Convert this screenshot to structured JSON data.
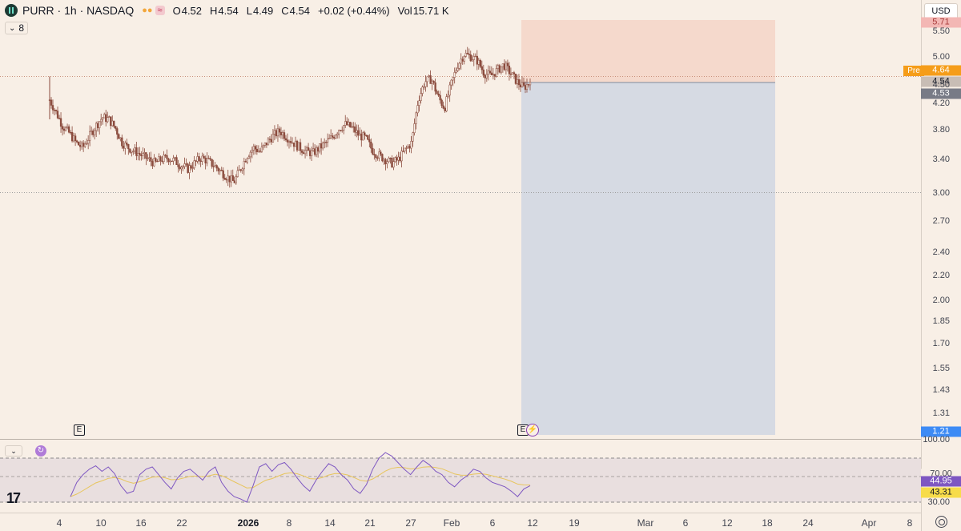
{
  "header": {
    "symbol": "PURR · 1h · NASDAQ",
    "open_label": "O",
    "open": "4.52",
    "high_label": "H",
    "high": "4.54",
    "low_label": "L",
    "low": "4.49",
    "close_label": "C",
    "close": "4.54",
    "change": "+0.02 (+0.44%)",
    "vol_label": "Vol",
    "vol": "15.71 K",
    "indicator_count": "8"
  },
  "currency": "USD",
  "price_axis": [
    "5.50",
    "5.00",
    "4.50",
    "4.20",
    "3.80",
    "3.40",
    "3.00",
    "2.70",
    "2.40",
    "2.20",
    "2.00",
    "1.85",
    "1.70",
    "1.55",
    "1.43",
    "1.31"
  ],
  "price_tags": {
    "top_partial": "5.71",
    "pre_label": "Pre",
    "pre": "4.64",
    "last": "4.54",
    "bid": "4.53",
    "stop": "1.21"
  },
  "rsi_axis": [
    "100.00",
    "30.00"
  ],
  "rsi_tags": {
    "top_partial": "70.00",
    "rsi": "44.95",
    "rsi_ma": "43.31"
  },
  "time_axis": [
    {
      "label": "4"
    },
    {
      "label": "10"
    },
    {
      "label": "16"
    },
    {
      "label": "22"
    },
    {
      "label": "2026",
      "bold": true
    },
    {
      "label": "8"
    },
    {
      "label": "14"
    },
    {
      "label": "21"
    },
    {
      "label": "27"
    },
    {
      "label": "Feb"
    },
    {
      "label": "6"
    },
    {
      "label": "12"
    },
    {
      "label": "19"
    },
    {
      "label": "Mar"
    },
    {
      "label": "6"
    },
    {
      "label": "12"
    },
    {
      "label": "18"
    },
    {
      "label": "24"
    },
    {
      "label": "Apr"
    },
    {
      "label": "8"
    }
  ],
  "events": [
    {
      "label": "E"
    },
    {
      "label": "E"
    }
  ],
  "colors": {
    "background": "#f8efe6",
    "candle": "#8a4a3c",
    "target_zone": "#f5d9cc",
    "stop_zone": "#d6dae3",
    "rsi": "#7e57c2",
    "rsi_ma": "#e8c55c",
    "rsi_band": "#e9dfdf"
  },
  "icons": [
    "chevron-down-icon",
    "refresh-icon",
    "tradingview-logo-icon",
    "bolt-icon",
    "settings-icon"
  ],
  "chart_data": {
    "type": "candlestick",
    "symbol": "PURR",
    "interval": "1h",
    "series_close": [
      4.25,
      4.05,
      3.85,
      3.75,
      3.62,
      3.55,
      3.7,
      3.85,
      3.98,
      3.95,
      3.82,
      3.62,
      3.55,
      3.5,
      3.45,
      3.4,
      3.35,
      3.4,
      3.42,
      3.38,
      3.32,
      3.28,
      3.35,
      3.42,
      3.38,
      3.32,
      3.25,
      3.18,
      3.12,
      3.28,
      3.45,
      3.55,
      3.5,
      3.62,
      3.72,
      3.78,
      3.7,
      3.62,
      3.55,
      3.5,
      3.48,
      3.55,
      3.62,
      3.7,
      3.82,
      3.88,
      3.82,
      3.72,
      3.68,
      3.52,
      3.45,
      3.4,
      3.35,
      3.4,
      3.52,
      3.62,
      4.25,
      4.55,
      4.6,
      4.3,
      4.12,
      4.5,
      4.85,
      5.05,
      5.0,
      4.92,
      4.7,
      4.65,
      4.75,
      4.85,
      4.7,
      4.55,
      4.45,
      4.54
    ],
    "price_range": [
      1.21,
      5.71
    ],
    "scale": "log",
    "reference_lines": [
      4.64,
      3.0
    ],
    "position": {
      "entry": 4.54,
      "target": 5.71,
      "stop": 1.21
    },
    "rsi": {
      "levels": [
        70,
        50,
        30
      ],
      "range": [
        0,
        100
      ],
      "last": 44.95,
      "ma_last": 43.31,
      "series": [
        35,
        48,
        55,
        60,
        63,
        58,
        62,
        56,
        45,
        38,
        40,
        55,
        60,
        62,
        55,
        48,
        42,
        52,
        58,
        60,
        55,
        50,
        58,
        62,
        48,
        40,
        35,
        33,
        30,
        45,
        62,
        65,
        58,
        64,
        66,
        60,
        52,
        45,
        40,
        50,
        58,
        65,
        62,
        55,
        50,
        42,
        38,
        46,
        60,
        70,
        75,
        72,
        66,
        60,
        55,
        62,
        68,
        64,
        58,
        55,
        48,
        44,
        50,
        54,
        60,
        58,
        52,
        48,
        46,
        44,
        40,
        35,
        42,
        45
      ]
    }
  }
}
